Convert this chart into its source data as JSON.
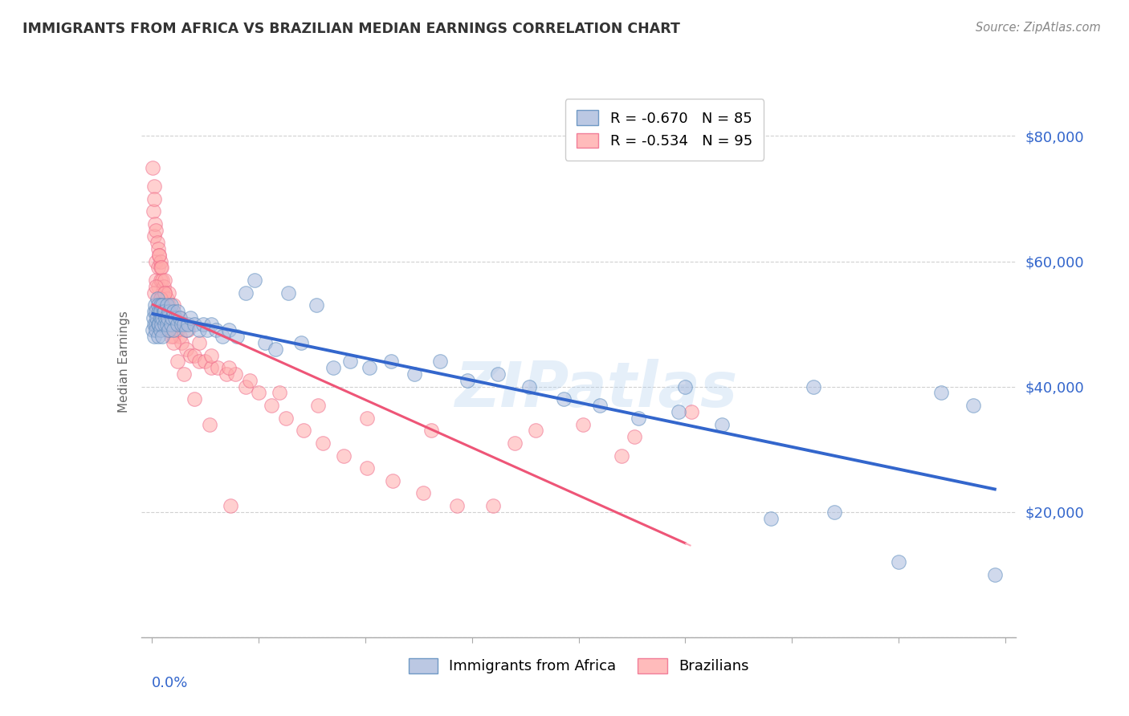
{
  "title": "IMMIGRANTS FROM AFRICA VS BRAZILIAN MEDIAN EARNINGS CORRELATION CHART",
  "source": "Source: ZipAtlas.com",
  "ylabel": "Median Earnings",
  "legend_blue_r": "R = -0.670",
  "legend_blue_n": "N = 85",
  "legend_pink_r": "R = -0.534",
  "legend_pink_n": "N = 95",
  "blue_fill_color": "#AABBDD",
  "pink_fill_color": "#FFAAAA",
  "blue_edge_color": "#5588BB",
  "pink_edge_color": "#EE6688",
  "blue_line_color": "#3366CC",
  "pink_line_color": "#EE5577",
  "pink_dash_color": "#FFAABB",
  "axis_label_color": "#3366CC",
  "background_color": "#FFFFFF",
  "watermark": "ZIPatlas",
  "blue_scatter_x": [
    0.0005,
    0.0008,
    0.001,
    0.001,
    0.0012,
    0.0015,
    0.0018,
    0.002,
    0.002,
    0.0022,
    0.0025,
    0.003,
    0.003,
    0.003,
    0.0032,
    0.0035,
    0.004,
    0.004,
    0.004,
    0.0042,
    0.0045,
    0.005,
    0.005,
    0.005,
    0.0055,
    0.006,
    0.006,
    0.0065,
    0.007,
    0.007,
    0.0075,
    0.008,
    0.008,
    0.009,
    0.009,
    0.0095,
    0.01,
    0.01,
    0.011,
    0.012,
    0.012,
    0.013,
    0.014,
    0.015,
    0.016,
    0.017,
    0.018,
    0.02,
    0.022,
    0.024,
    0.026,
    0.028,
    0.03,
    0.033,
    0.036,
    0.04,
    0.044,
    0.048,
    0.053,
    0.058,
    0.064,
    0.07,
    0.077,
    0.085,
    0.093,
    0.102,
    0.112,
    0.123,
    0.135,
    0.148,
    0.162,
    0.177,
    0.193,
    0.21,
    0.228,
    0.247,
    0.267,
    0.29,
    0.32,
    0.35,
    0.37,
    0.385,
    0.395,
    0.25,
    0.31
  ],
  "blue_scatter_y": [
    49000,
    51000,
    52000,
    48000,
    50000,
    53000,
    50000,
    52000,
    49000,
    51000,
    54000,
    53000,
    50000,
    48000,
    52000,
    50000,
    53000,
    51000,
    49000,
    52000,
    50000,
    53000,
    51000,
    48000,
    52000,
    52000,
    50000,
    51000,
    53000,
    50000,
    51000,
    52000,
    49000,
    53000,
    50000,
    51000,
    52000,
    49000,
    51000,
    52000,
    50000,
    51000,
    50000,
    50000,
    49000,
    50000,
    51000,
    50000,
    49000,
    50000,
    49000,
    50000,
    49000,
    48000,
    49000,
    48000,
    55000,
    57000,
    47000,
    46000,
    55000,
    47000,
    53000,
    43000,
    44000,
    43000,
    44000,
    42000,
    44000,
    41000,
    42000,
    40000,
    38000,
    37000,
    35000,
    36000,
    34000,
    19000,
    20000,
    12000,
    39000,
    37000,
    10000,
    40000,
    40000
  ],
  "pink_scatter_x": [
    0.0005,
    0.0008,
    0.001,
    0.001,
    0.0012,
    0.0015,
    0.002,
    0.002,
    0.002,
    0.0025,
    0.003,
    0.003,
    0.003,
    0.003,
    0.0035,
    0.004,
    0.004,
    0.004,
    0.0042,
    0.005,
    0.005,
    0.005,
    0.0055,
    0.006,
    0.006,
    0.007,
    0.007,
    0.007,
    0.008,
    0.008,
    0.009,
    0.009,
    0.01,
    0.01,
    0.011,
    0.012,
    0.013,
    0.014,
    0.016,
    0.018,
    0.02,
    0.022,
    0.025,
    0.028,
    0.031,
    0.035,
    0.039,
    0.044,
    0.05,
    0.056,
    0.063,
    0.071,
    0.08,
    0.09,
    0.101,
    0.113,
    0.127,
    0.143,
    0.16,
    0.18,
    0.202,
    0.226,
    0.253,
    0.0035,
    0.0045,
    0.006,
    0.008,
    0.01,
    0.013,
    0.017,
    0.022,
    0.028,
    0.036,
    0.046,
    0.06,
    0.078,
    0.101,
    0.131,
    0.17,
    0.22,
    0.001,
    0.002,
    0.003,
    0.004,
    0.005,
    0.006,
    0.007,
    0.008,
    0.009,
    0.01,
    0.012,
    0.015,
    0.02,
    0.027,
    0.037
  ],
  "pink_scatter_y": [
    75000,
    68000,
    72000,
    64000,
    70000,
    66000,
    65000,
    60000,
    57000,
    63000,
    62000,
    59000,
    56000,
    54000,
    61000,
    60000,
    57000,
    54000,
    59000,
    57000,
    55000,
    52000,
    56000,
    55000,
    52000,
    54000,
    51000,
    49000,
    53000,
    50000,
    52000,
    49000,
    51000,
    48000,
    50000,
    49000,
    48000,
    47000,
    46000,
    45000,
    45000,
    44000,
    44000,
    43000,
    43000,
    42000,
    42000,
    40000,
    39000,
    37000,
    35000,
    33000,
    31000,
    29000,
    27000,
    25000,
    23000,
    21000,
    21000,
    33000,
    34000,
    32000,
    36000,
    61000,
    59000,
    57000,
    55000,
    53000,
    51000,
    49000,
    47000,
    45000,
    43000,
    41000,
    39000,
    37000,
    35000,
    33000,
    31000,
    29000,
    55000,
    56000,
    52000,
    54000,
    53000,
    55000,
    51000,
    49000,
    48000,
    47000,
    44000,
    42000,
    38000,
    34000,
    21000
  ]
}
